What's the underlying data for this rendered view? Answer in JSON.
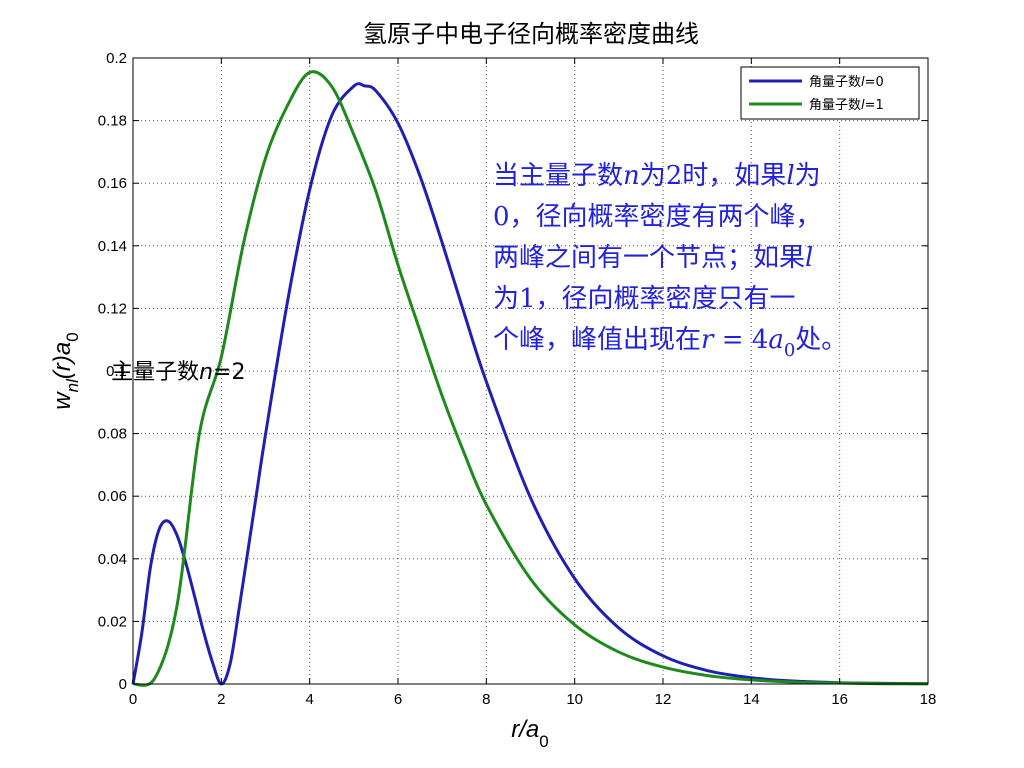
{
  "chart_data": {
    "type": "line",
    "title": "氢原子中电子径向概率密度曲线",
    "xlabel": {
      "main": "r/a",
      "sub": "0"
    },
    "ylabel": {
      "w": "w",
      "nl": "nl",
      "r": "(r)a",
      "sub": "0"
    },
    "xlim": [
      0,
      18
    ],
    "ylim": [
      0,
      0.2
    ],
    "xticks": [
      0,
      2,
      4,
      6,
      8,
      10,
      12,
      14,
      16,
      18
    ],
    "xtick_labels": [
      "0",
      "2",
      "4",
      "6",
      "8",
      "10",
      "12",
      "14",
      "16",
      "18"
    ],
    "yticks": [
      0,
      0.02,
      0.04,
      0.06,
      0.08,
      0.1,
      0.12,
      0.14,
      0.16,
      0.18,
      0.2
    ],
    "ytick_labels": [
      "0",
      "0.02",
      "0.04",
      "0.06",
      "0.08",
      "0.1",
      "0.12",
      "0.14",
      "0.16",
      "0.18",
      "0.2"
    ],
    "grid": true,
    "legend_position": "top-right",
    "series": [
      {
        "name": "角量子数l=0",
        "legend_prefix": "角量子数",
        "legend_var": "l",
        "legend_suffix": "=0",
        "color": "#1f1fb4",
        "x": [
          0,
          0.2,
          0.4,
          0.6,
          0.8,
          1.0,
          1.2,
          1.4,
          1.6,
          1.8,
          2.0,
          2.2,
          2.4,
          2.6,
          2.8,
          3.0,
          3.5,
          4.0,
          4.5,
          5.0,
          5.24,
          5.5,
          6.0,
          6.5,
          7.0,
          7.5,
          8.0,
          9.0,
          10.0,
          11.0,
          12.0,
          13.0,
          14.0,
          15.0,
          16.0,
          17.0,
          18.0
        ],
        "y": [
          0,
          0.0163,
          0.0378,
          0.0497,
          0.052,
          0.0474,
          0.0385,
          0.0277,
          0.0166,
          0.0069,
          0,
          0.0065,
          0.0238,
          0.0424,
          0.0611,
          0.0797,
          0.1223,
          0.1579,
          0.1816,
          0.191,
          0.1911,
          0.1895,
          0.1792,
          0.1622,
          0.141,
          0.1184,
          0.0966,
          0.0595,
          0.0337,
          0.0179,
          0.009,
          0.0043,
          0.002,
          0.0009,
          0.0004,
          0.0002,
          0.0001
        ]
      },
      {
        "name": "角量子数l=1",
        "legend_prefix": "角量子数",
        "legend_var": "l",
        "legend_suffix": "=1",
        "color": "#1e8a1e",
        "x": [
          0,
          0.5,
          1.0,
          1.5,
          2.0,
          2.5,
          3.0,
          3.5,
          4.0,
          4.5,
          5.0,
          5.5,
          6.0,
          6.5,
          7.0,
          7.5,
          8.0,
          9.0,
          10.0,
          11.0,
          12.0,
          13.0,
          14.0,
          15.0,
          16.0,
          17.0,
          18.0
        ],
        "y": [
          0,
          0.002,
          0.0253,
          0.0797,
          0.1045,
          0.1406,
          0.168,
          0.1849,
          0.1954,
          0.1909,
          0.1755,
          0.1574,
          0.1339,
          0.1128,
          0.092,
          0.0737,
          0.0573,
          0.0336,
          0.0189,
          0.0102,
          0.0054,
          0.0027,
          0.0013,
          0.0006,
          0.0003,
          0.0001,
          0.0001
        ]
      }
    ],
    "annotations": {
      "n_label": {
        "prefix": "主量子数",
        "var": "n",
        "suffix": "=2",
        "x": 0.5,
        "y": 0.1
      },
      "note_lines": [
        {
          "a": "当主量子数",
          "v": "n",
          "b": "为2时，如果",
          "v2": "l",
          "c": "为"
        },
        {
          "a": "0，径向概率密度有两个峰，"
        },
        {
          "a": "两峰之间有一个节点；如果",
          "v": "l"
        },
        {
          "a": "为1，径向概率密度只有一"
        },
        {
          "a": "个峰，峰值出现在",
          "v": "r",
          "b": " = 4",
          "v2": "a",
          "sub": "0",
          "c": "处。"
        }
      ]
    }
  }
}
